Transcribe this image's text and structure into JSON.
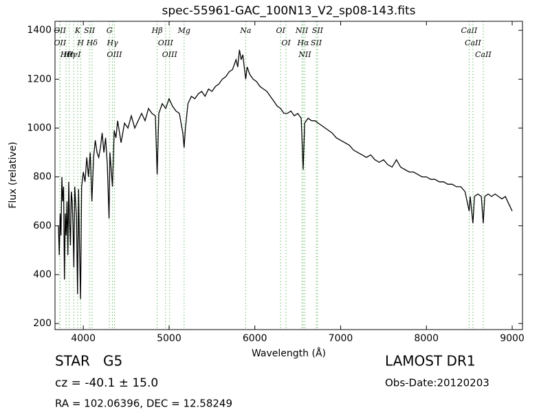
{
  "chart_data": {
    "type": "line",
    "title": "spec-55961-GAC_100N13_V2_sp08-143.fits",
    "x_label": "Wavelength (Å)",
    "y_label": "Flux (relative)",
    "xlim": [
      3670,
      9120
    ],
    "ylim": [
      175,
      1437
    ],
    "xticks": [
      4000,
      5000,
      6000,
      7000,
      8000,
      9000
    ],
    "yticks": [
      200,
      400,
      600,
      800,
      1000,
      1200,
      1400
    ],
    "color": "#000000",
    "line_color": "#66bb66",
    "x": [
      3710,
      3720,
      3730,
      3740,
      3750,
      3760,
      3770,
      3780,
      3790,
      3800,
      3810,
      3820,
      3830,
      3840,
      3850,
      3860,
      3870,
      3880,
      3890,
      3900,
      3910,
      3920,
      3933,
      3945,
      3955,
      3968,
      3980,
      4000,
      4020,
      4040,
      4060,
      4080,
      4100,
      4120,
      4140,
      4160,
      4180,
      4200,
      4220,
      4240,
      4260,
      4280,
      4300,
      4310,
      4340,
      4360,
      4380,
      4400,
      4440,
      4480,
      4520,
      4560,
      4600,
      4640,
      4680,
      4720,
      4760,
      4800,
      4840,
      4861,
      4880,
      4920,
      4960,
      5000,
      5040,
      5080,
      5120,
      5160,
      5175,
      5190,
      5220,
      5260,
      5300,
      5340,
      5380,
      5420,
      5460,
      5500,
      5540,
      5580,
      5620,
      5660,
      5700,
      5740,
      5780,
      5800,
      5820,
      5840,
      5860,
      5880,
      5893,
      5910,
      5940,
      5980,
      6020,
      6060,
      6100,
      6140,
      6180,
      6220,
      6260,
      6300,
      6340,
      6380,
      6420,
      6460,
      6500,
      6540,
      6563,
      6580,
      6620,
      6660,
      6700,
      6740,
      6780,
      6820,
      6860,
      6900,
      6950,
      7000,
      7050,
      7100,
      7150,
      7200,
      7250,
      7300,
      7350,
      7400,
      7450,
      7500,
      7550,
      7600,
      7650,
      7700,
      7750,
      7800,
      7850,
      7900,
      7950,
      8000,
      8050,
      8100,
      8150,
      8200,
      8250,
      8300,
      8350,
      8400,
      8450,
      8498,
      8510,
      8542,
      8560,
      8600,
      8640,
      8662,
      8680,
      8720,
      8760,
      8800,
      8840,
      8880,
      8920,
      8960,
      9000
    ],
    "values": [
      600,
      480,
      650,
      560,
      800,
      700,
      760,
      380,
      650,
      560,
      700,
      480,
      780,
      620,
      520,
      740,
      700,
      600,
      430,
      760,
      700,
      640,
      320,
      750,
      520,
      300,
      760,
      820,
      780,
      880,
      800,
      900,
      700,
      880,
      950,
      900,
      880,
      920,
      980,
      900,
      960,
      850,
      630,
      900,
      760,
      990,
      960,
      1030,
      940,
      1020,
      1000,
      1050,
      1000,
      1030,
      1060,
      1030,
      1080,
      1060,
      1050,
      810,
      1060,
      1100,
      1080,
      1120,
      1090,
      1070,
      1060,
      980,
      920,
      1000,
      1100,
      1130,
      1120,
      1140,
      1150,
      1130,
      1160,
      1150,
      1170,
      1180,
      1200,
      1210,
      1230,
      1240,
      1280,
      1250,
      1320,
      1280,
      1300,
      1240,
      1200,
      1250,
      1220,
      1200,
      1190,
      1170,
      1160,
      1150,
      1130,
      1110,
      1090,
      1080,
      1060,
      1060,
      1070,
      1050,
      1060,
      1040,
      830,
      1020,
      1040,
      1030,
      1030,
      1020,
      1010,
      1000,
      990,
      980,
      960,
      950,
      940,
      930,
      910,
      900,
      890,
      880,
      890,
      870,
      860,
      870,
      850,
      840,
      870,
      840,
      830,
      820,
      820,
      810,
      800,
      800,
      790,
      790,
      780,
      780,
      770,
      770,
      760,
      760,
      740,
      660,
      720,
      610,
      720,
      730,
      720,
      610,
      720,
      730,
      720,
      730,
      720,
      710,
      720,
      690,
      660
    ],
    "lines": [
      {
        "label": "OII",
        "x": 3727
      },
      {
        "label": "OII",
        "x": 3729
      },
      {
        "label": "Hθ",
        "x": 3798
      },
      {
        "label": "Hη",
        "x": 3835
      },
      {
        "label": "HeI",
        "x": 3889
      },
      {
        "label": "K",
        "x": 3934
      },
      {
        "label": "H",
        "x": 3969
      },
      {
        "label": "SII",
        "x": 4072
      },
      {
        "label": "Hδ",
        "x": 4102
      },
      {
        "label": "G",
        "x": 4304
      },
      {
        "label": "Hγ",
        "x": 4340
      },
      {
        "label": "OIII",
        "x": 4363
      },
      {
        "label": "Hβ",
        "x": 4861
      },
      {
        "label": "OIII",
        "x": 4959
      },
      {
        "label": "OIII",
        "x": 5007
      },
      {
        "label": "Mg",
        "x": 5175
      },
      {
        "label": "Na",
        "x": 5893
      },
      {
        "label": "OI",
        "x": 6300
      },
      {
        "label": "OI",
        "x": 6363
      },
      {
        "label": "NII",
        "x": 6548
      },
      {
        "label": "Hα",
        "x": 6563
      },
      {
        "label": "NII",
        "x": 6583
      },
      {
        "label": "SII",
        "x": 6716
      },
      {
        "label": "SII",
        "x": 6731
      },
      {
        "label": "CaII",
        "x": 8498
      },
      {
        "label": "CaII",
        "x": 8542
      },
      {
        "label": "CaII",
        "x": 8662
      }
    ],
    "annotations": [
      "STAR   G5",
      "cz = -40.1 ± 15.0",
      "RA = 102.06396, DEC = 12.58249",
      "LAMOST DR1",
      "Obs-Date:20120203"
    ]
  }
}
